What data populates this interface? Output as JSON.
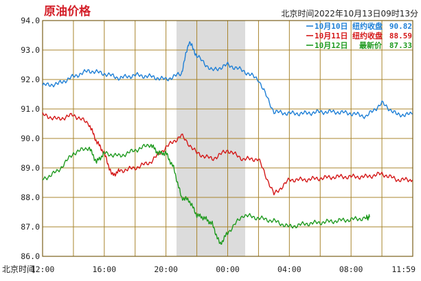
{
  "header": {
    "title": "原油价格",
    "timestamp": "北京时间2022年10月13日09时13分"
  },
  "legend": [
    {
      "date": "10月10日",
      "label": "纽约收盘",
      "value": "90.82",
      "color": "#1e7fd6"
    },
    {
      "date": "10月11日",
      "label": "纽约收盘",
      "value": "88.59",
      "color": "#d41818"
    },
    {
      "date": "10月12日",
      "label": "最新价",
      "value": "87.33",
      "color": "#1f9a1f"
    }
  ],
  "colors": {
    "title": "#d4202a",
    "grid": "#a8842c",
    "shade": "#dcdcdc",
    "blue": "#1e7fd6",
    "red": "#d41818",
    "green": "#1f9a1f"
  },
  "chart_data": {
    "type": "line",
    "title": "原油价格",
    "xlabel": "北京时间",
    "ylabel": "",
    "ylim": [
      86.0,
      94.0
    ],
    "xlim": [
      "12:00",
      "11:59"
    ],
    "x_tick_labels": [
      "12:00",
      "16:00",
      "20:00",
      "00:00",
      "04:00",
      "08:00",
      "11:59"
    ],
    "y_tick_labels": [
      "94.0",
      "93.0",
      "92.0",
      "91.0",
      "90.0",
      "89.0",
      "88.0",
      "87.0",
      "86.0"
    ],
    "grid": true,
    "legend_position": "top-right",
    "shaded_span": [
      "20:30",
      "00:30"
    ],
    "series": [
      {
        "name": "10月10日 纽约收盘 90.82",
        "color": "#1e7fd6",
        "x": [
          0,
          1,
          2,
          3,
          4,
          5,
          6,
          7,
          8,
          9,
          9.5,
          10,
          11,
          12,
          13,
          14,
          15,
          16,
          17,
          18,
          19,
          20,
          21,
          22,
          23,
          23.98
        ],
        "y": [
          91.8,
          91.85,
          92.1,
          92.3,
          92.2,
          92.05,
          92.15,
          92.1,
          92.0,
          92.2,
          93.3,
          92.8,
          92.3,
          92.5,
          92.3,
          92.0,
          90.9,
          90.85,
          90.85,
          90.9,
          90.9,
          90.85,
          90.75,
          91.2,
          90.8,
          90.82
        ]
      },
      {
        "name": "10月11日 纽约收盘 88.59",
        "color": "#d41818",
        "x": [
          0,
          1,
          2,
          3,
          3.5,
          4,
          4.5,
          5,
          6,
          7,
          8,
          9,
          10,
          11,
          12,
          13,
          14,
          15,
          16,
          17,
          18,
          19,
          20,
          21,
          22,
          23,
          23.98
        ],
        "y": [
          90.8,
          90.65,
          90.8,
          90.5,
          89.9,
          89.5,
          88.75,
          88.9,
          89.0,
          89.2,
          89.7,
          90.1,
          89.5,
          89.3,
          89.6,
          89.3,
          89.3,
          88.1,
          88.6,
          88.6,
          88.65,
          88.7,
          88.7,
          88.7,
          88.8,
          88.6,
          88.59
        ]
      },
      {
        "name": "10月12日 最新价 87.33",
        "color": "#1f9a1f",
        "x": [
          0,
          1,
          2,
          3,
          3.5,
          4,
          5,
          6,
          7,
          7.5,
          8,
          8.5,
          9,
          9.5,
          10,
          10.5,
          11,
          11.5,
          12,
          13,
          14,
          15,
          16,
          17,
          18,
          19,
          20,
          21,
          21.2
        ],
        "y": [
          88.6,
          88.9,
          89.5,
          89.7,
          89.2,
          89.5,
          89.4,
          89.6,
          89.8,
          89.5,
          89.5,
          89.0,
          88.0,
          87.9,
          87.4,
          87.3,
          87.1,
          86.4,
          86.8,
          87.4,
          87.3,
          87.2,
          87.0,
          87.1,
          87.15,
          87.2,
          87.25,
          87.3,
          87.33
        ]
      }
    ]
  }
}
